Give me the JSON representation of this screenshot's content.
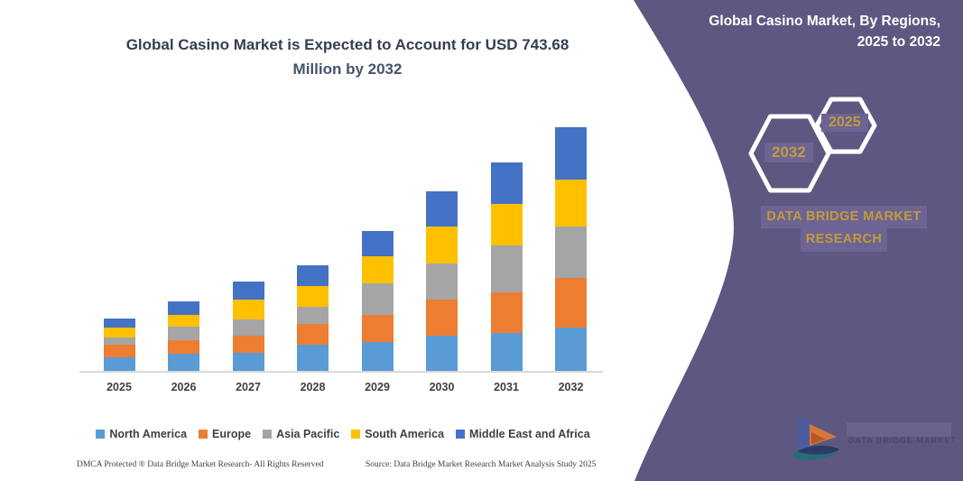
{
  "page": {
    "background": "#ffffff"
  },
  "chart": {
    "title_line1": "Global Casino Market is Expected to Account for USD 743.68",
    "title_line2": "Million by 2032",
    "footer_left": "DMCA Protected ® Data Bridge Market Research-  All Rights Reserved",
    "footer_right": "Source: Data Bridge Market Research  Market Analysis Study 2025"
  },
  "chart_data": {
    "type": "bar",
    "stacked": true,
    "unit": "USD Million",
    "title": "Global Casino Market is Expected to Account for USD 743.68 Million by 2032",
    "categories": [
      "2025",
      "2026",
      "2027",
      "2028",
      "2029",
      "2030",
      "2031",
      "2032"
    ],
    "series": [
      {
        "name": "North America",
        "color": "#5B9BD5",
        "values": [
          41,
          52,
          55,
          80,
          88,
          107,
          116,
          132
        ]
      },
      {
        "name": "Europe",
        "color": "#ED7D31",
        "values": [
          39,
          41,
          52,
          63,
          83,
          110,
          124,
          151
        ]
      },
      {
        "name": "Asia Pacific",
        "color": "#A5A5A5",
        "values": [
          22,
          41,
          50,
          52,
          96,
          110,
          143,
          157
        ]
      },
      {
        "name": "South America",
        "color": "#FFC000",
        "values": [
          30,
          36,
          61,
          63,
          83,
          113,
          127,
          143.68
        ]
      },
      {
        "name": "Middle East and Africa",
        "color": "#4472C4",
        "values": [
          28,
          41,
          55,
          63,
          77,
          107,
          127,
          160
        ]
      }
    ],
    "totals": [
      160,
      211,
      273,
      321,
      427,
      547,
      637,
      743.68
    ],
    "ylim": [
      0,
      780
    ],
    "grid": false,
    "legend_position": "bottom",
    "y_axis_labels_visible": false
  },
  "panel": {
    "background": "#5E5781",
    "highlight_background": "#6C6493",
    "accent_gold": "#C49A3A",
    "title_line1": "Global Casino Market, By Regions,",
    "title_line2": "2025 to 2032",
    "hexagons": [
      {
        "label": "2032"
      },
      {
        "label": "2025"
      }
    ],
    "brand_line1": "DATA BRIDGE MARKET",
    "brand_line2": "RESEARCH",
    "logo_icon": "data-bridge-logo-watermark",
    "logo_faint_text": "DATA BRIDGE MARKET RESEARCH"
  }
}
